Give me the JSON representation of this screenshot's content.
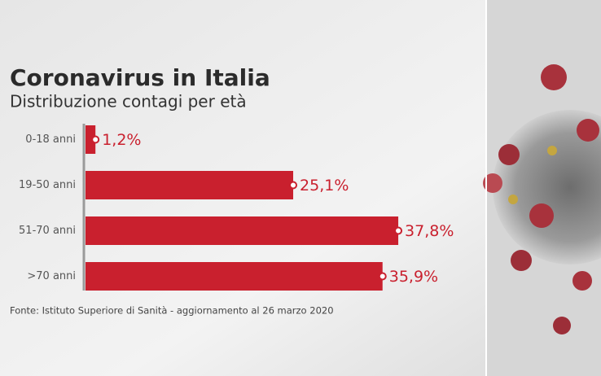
{
  "chart_data": {
    "type": "hbar",
    "title": "Coronavirus in Italia",
    "subtitle": "Distribuzione contagi per età",
    "source": "Fonte: Istituto Superiore di Sanità - aggiornamento al 26 marzo 2020",
    "categories": [
      "0-18 anni",
      "19-50 anni",
      "51-70 anni",
      ">70 anni"
    ],
    "values": [
      1.2,
      25.1,
      37.8,
      35.9
    ],
    "value_labels": [
      "1,2%",
      "25,1%",
      "37,8%",
      "35,9%"
    ],
    "color": "#c9202e"
  }
}
